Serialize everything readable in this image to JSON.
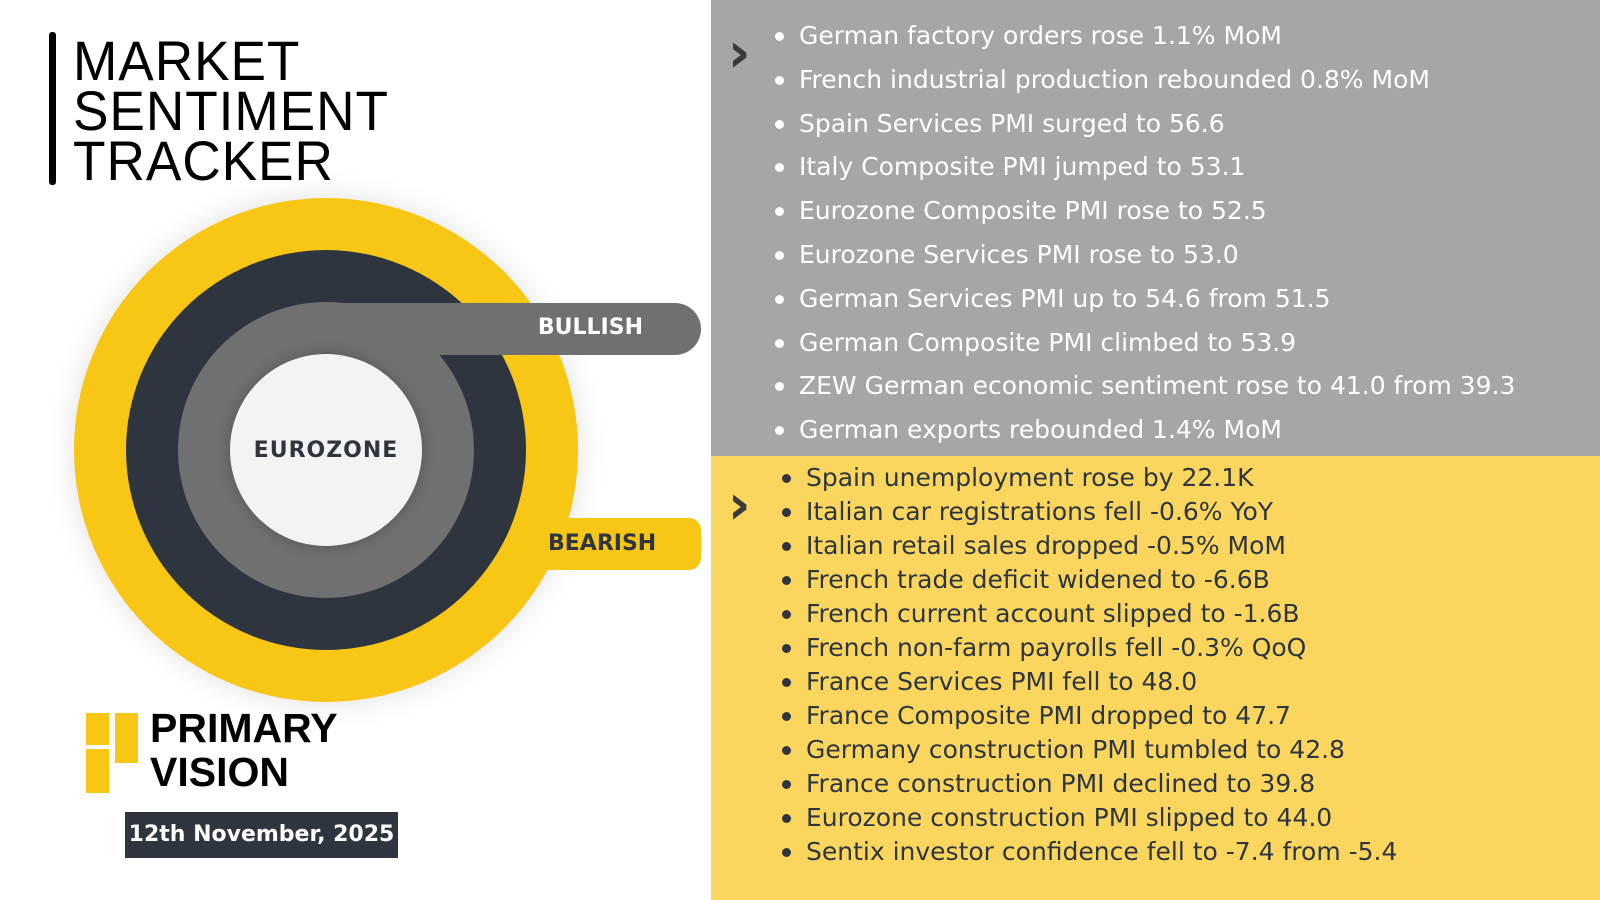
{
  "title": {
    "line1": "MARKET",
    "line2": "SENTIMENT",
    "line3": "TRACKER"
  },
  "diagram": {
    "center_label": "EUROZONE",
    "bullish_label": "BULLISH",
    "bearish_label": "BEARISH"
  },
  "logo": {
    "line1": "PRIMARY",
    "line2": "VISION"
  },
  "date": "12th November, 2025",
  "colors": {
    "gray_panel": "#a6a6a6",
    "yellow_panel": "#fad65e",
    "ring_yellow": "#f8c614",
    "ring_dark": "#2e353f",
    "ring_gray": "#707070"
  },
  "bullish_items": [
    "German factory orders rose 1.1% MoM",
    "French industrial production rebounded 0.8% MoM",
    "Spain Services PMI surged to 56.6",
    "Italy Composite PMI jumped to 53.1",
    "Eurozone Composite PMI rose to 52.5",
    "Eurozone Services PMI rose to 53.0",
    "German Services PMI up to 54.6 from 51.5",
    "German Composite PMI climbed to 53.9",
    "ZEW German economic sentiment rose to 41.0 from 39.3",
    "German exports rebounded 1.4% MoM"
  ],
  "bearish_items": [
    "Spain unemployment rose by 22.1K",
    "Italian car registrations fell -0.6% YoY",
    "Italian retail sales dropped -0.5% MoM",
    "French trade deficit widened to -6.6B",
    "French current account slipped to -1.6B",
    "French non-farm payrolls fell -0.3% QoQ",
    "France Services PMI fell to 48.0",
    "France Composite PMI dropped to 47.7",
    "Germany construction PMI tumbled to 42.8",
    "France construction PMI declined to 39.8",
    "Eurozone construction PMI slipped to 44.0",
    "Sentix investor confidence fell to -7.4 from -5.4"
  ]
}
